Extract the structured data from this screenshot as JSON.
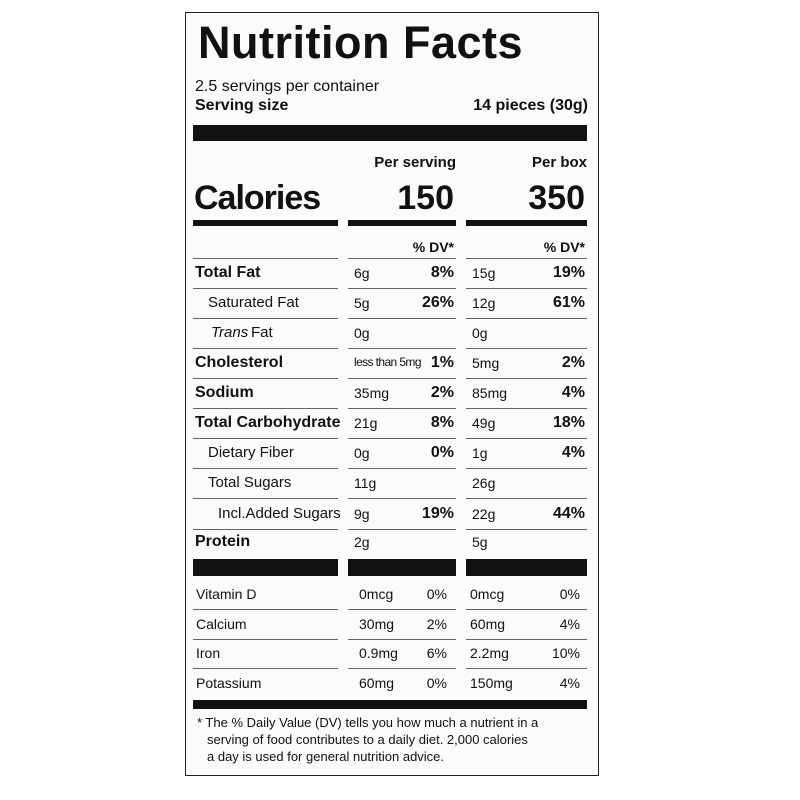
{
  "title": "Nutrition Facts",
  "servings": "2.5 servings per container",
  "serving_size": {
    "label": "Serving size",
    "value": "14 pieces (30g)"
  },
  "columns": [
    "Per serving",
    "Per box"
  ],
  "calories": {
    "label": "Calories",
    "values": [
      "150",
      "350"
    ]
  },
  "dv_header": "% DV*",
  "nutrients": [
    {
      "name": "Total Fat",
      "level": 0,
      "cells": [
        [
          "6g",
          "8%"
        ],
        [
          "15g",
          "19%"
        ]
      ]
    },
    {
      "name": "Saturated Fat",
      "level": 1,
      "cells": [
        [
          "5g",
          "26%"
        ],
        [
          "12g",
          "61%"
        ]
      ]
    },
    {
      "prefix": "Trans",
      "name": "Fat",
      "level": 1,
      "cells": [
        [
          "0g",
          ""
        ],
        [
          "0g",
          ""
        ]
      ]
    },
    {
      "name": "Cholesterol",
      "level": 0,
      "cells": [
        [
          "less than 5mg",
          "1%"
        ],
        [
          "5mg",
          "2%"
        ]
      ]
    },
    {
      "name": "Sodium",
      "level": 0,
      "cells": [
        [
          "35mg",
          "2%"
        ],
        [
          "85mg",
          "4%"
        ]
      ]
    },
    {
      "name": "Total Carbohydrate",
      "level": 0,
      "cells": [
        [
          "21g",
          "8%"
        ],
        [
          "49g",
          "18%"
        ]
      ]
    },
    {
      "name": "Dietary Fiber",
      "level": 1,
      "cells": [
        [
          "0g",
          "0%"
        ],
        [
          "1g",
          "4%"
        ]
      ]
    },
    {
      "name": "Total Sugars",
      "level": 1,
      "cells": [
        [
          "11g",
          ""
        ],
        [
          "26g",
          ""
        ]
      ]
    },
    {
      "name": "Incl.Added Sugars",
      "level": 2,
      "cells": [
        [
          "9g",
          "19%"
        ],
        [
          "22g",
          "44%"
        ]
      ]
    },
    {
      "name": "Protein",
      "level": 0,
      "cells": [
        [
          "2g",
          ""
        ],
        [
          "5g",
          ""
        ]
      ]
    }
  ],
  "vitamins": [
    {
      "name": "Vitamin D",
      "cells": [
        [
          "0mcg",
          "0%"
        ],
        [
          "0mcg",
          "0%"
        ]
      ]
    },
    {
      "name": "Calcium",
      "cells": [
        [
          "30mg",
          "2%"
        ],
        [
          "60mg",
          "4%"
        ]
      ]
    },
    {
      "name": "Iron",
      "cells": [
        [
          "0.9mg",
          "6%"
        ],
        [
          "2.2mg",
          "10%"
        ]
      ]
    },
    {
      "name": "Potassium",
      "cells": [
        [
          "60mg",
          "0%"
        ],
        [
          "150mg",
          "4%"
        ]
      ]
    }
  ],
  "footnote": [
    "* The % Daily Value (DV) tells you how much a nutrient in a",
    "serving of food contributes to a daily diet. 2,000 calories",
    "a day is used for general nutrition advice."
  ]
}
